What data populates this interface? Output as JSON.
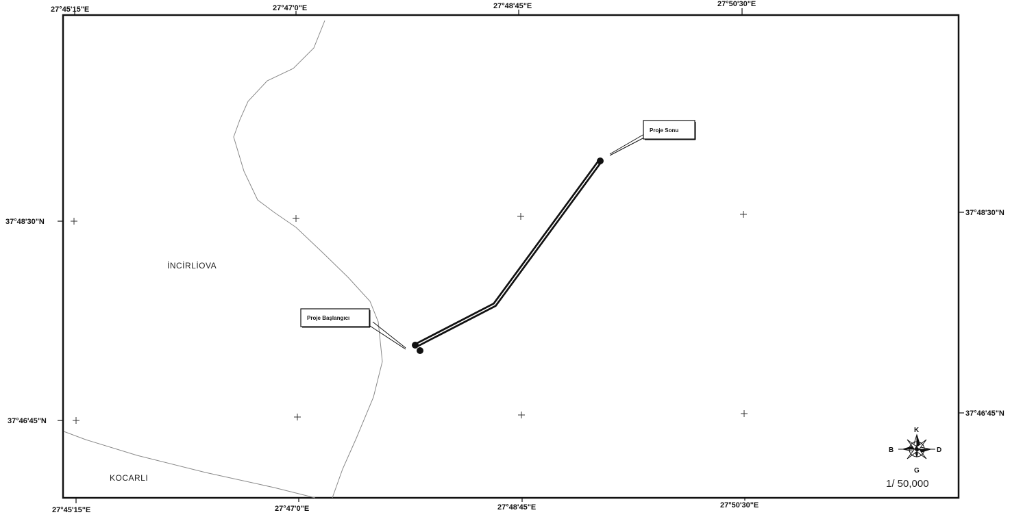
{
  "top_lon_labels": [
    "27°45'15\"E",
    "27°47'0\"E",
    "27°48'45\"E",
    "27°50'30\"E"
  ],
  "bottom_lon_labels": [
    "27°45'15\"E",
    "27°47'0\"E",
    "27°48'45\"E",
    "27°50'30\"E"
  ],
  "left_lat_labels": [
    "37°48'30\"N",
    "37°46'45\"N"
  ],
  "right_lat_labels": [
    "37°48'30\"N",
    "37°46'45\"N"
  ],
  "places": {
    "incirliova": "İNCİRLİOVA",
    "kocarli": "KOCARLI"
  },
  "callouts": {
    "start": "Proje Başlangıcı",
    "end": "Proje Sonu"
  },
  "compass": {
    "north": "K",
    "south": "G",
    "west": "B",
    "east": "D"
  },
  "scale": "1/ 50,000",
  "colors": {
    "frame": "#111111",
    "boundary": "#777777",
    "route": "#111111"
  }
}
